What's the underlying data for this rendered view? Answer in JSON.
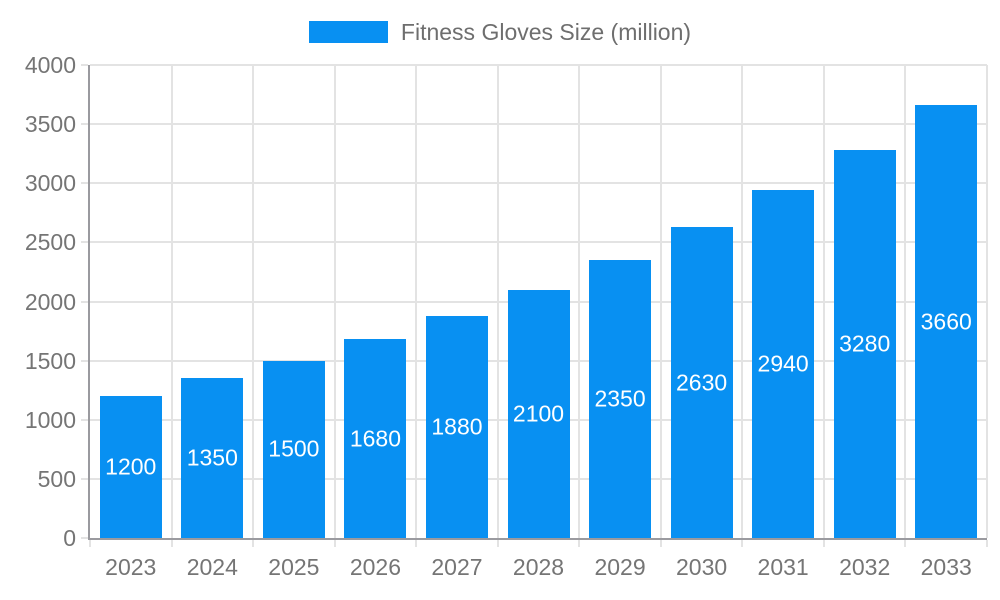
{
  "chart_data": {
    "type": "bar",
    "title": "Fitness Gloves Size (million)",
    "categories": [
      "2023",
      "2024",
      "2025",
      "2026",
      "2027",
      "2028",
      "2029",
      "2030",
      "2031",
      "2032",
      "2033"
    ],
    "values": [
      1200,
      1350,
      1500,
      1680,
      1880,
      2100,
      2350,
      2630,
      2940,
      3280,
      3660
    ],
    "xlabel": "",
    "ylabel": "",
    "ylim": [
      0,
      4000
    ],
    "ytick_step": 500,
    "grid": "on",
    "legend_position": "top-center",
    "bar_labels_shown": true,
    "colors": {
      "bar": "#0890F2",
      "grid": "#E3E3E3",
      "axis": "#9A9A9F",
      "tick_text": "#757575",
      "legend_text": "#6E6E6E",
      "bar_label_text": "#FFFFFF",
      "background": "#FFFFFF"
    }
  }
}
